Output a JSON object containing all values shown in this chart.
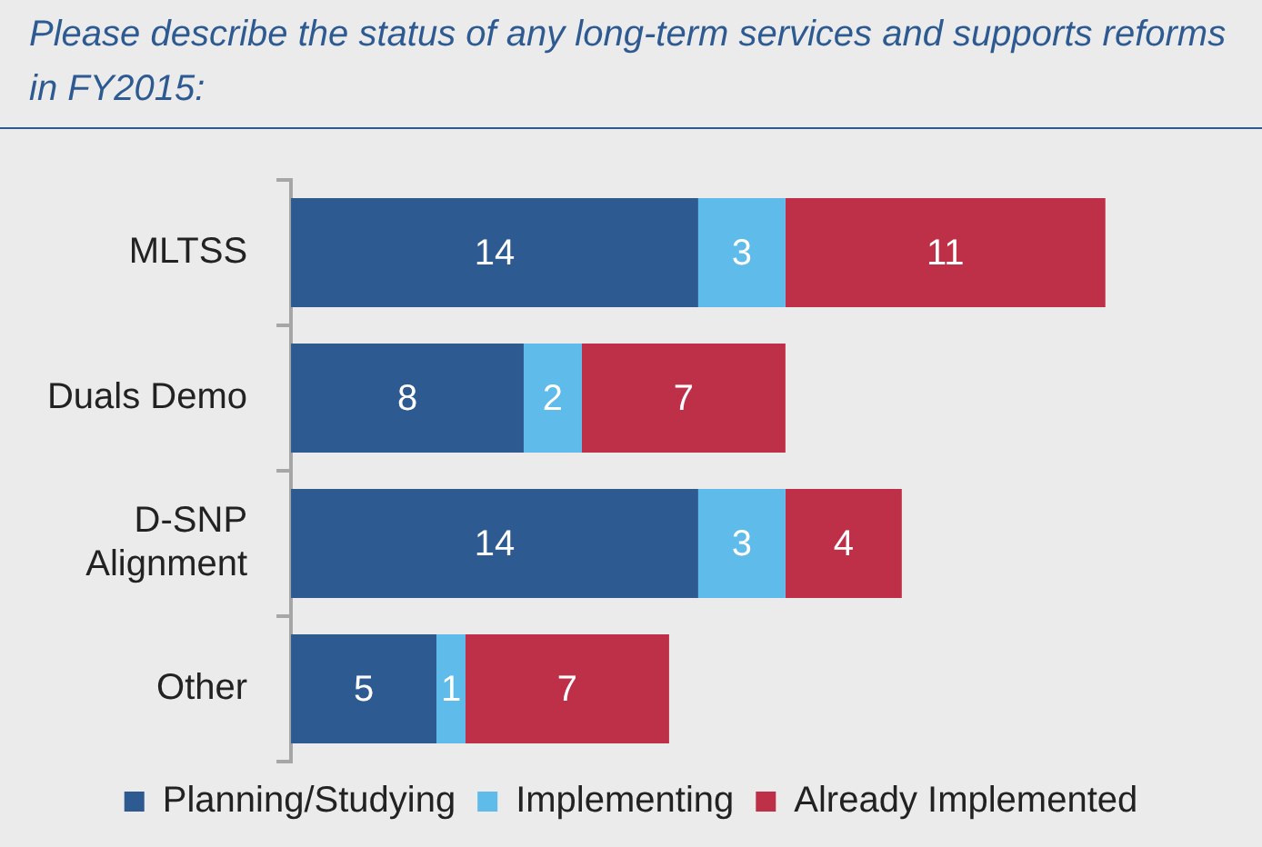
{
  "chart_data": {
    "type": "bar",
    "orientation": "horizontal",
    "stacked": true,
    "title": "Please describe the status of any long-term services and supports reforms in FY2015:",
    "categories": [
      "MLTSS",
      "Duals Demo",
      "D-SNP Alignment",
      "Other"
    ],
    "series": [
      {
        "name": "Planning/Studying",
        "color": "#2e5a92",
        "values": [
          14,
          8,
          14,
          5
        ]
      },
      {
        "name": "Implementing",
        "color": "#5ebbea",
        "values": [
          3,
          2,
          3,
          1
        ]
      },
      {
        "name": "Already Implemented",
        "color": "#be3048",
        "values": [
          11,
          7,
          4,
          7
        ]
      }
    ],
    "data_labels": true,
    "legend": "bottom"
  }
}
